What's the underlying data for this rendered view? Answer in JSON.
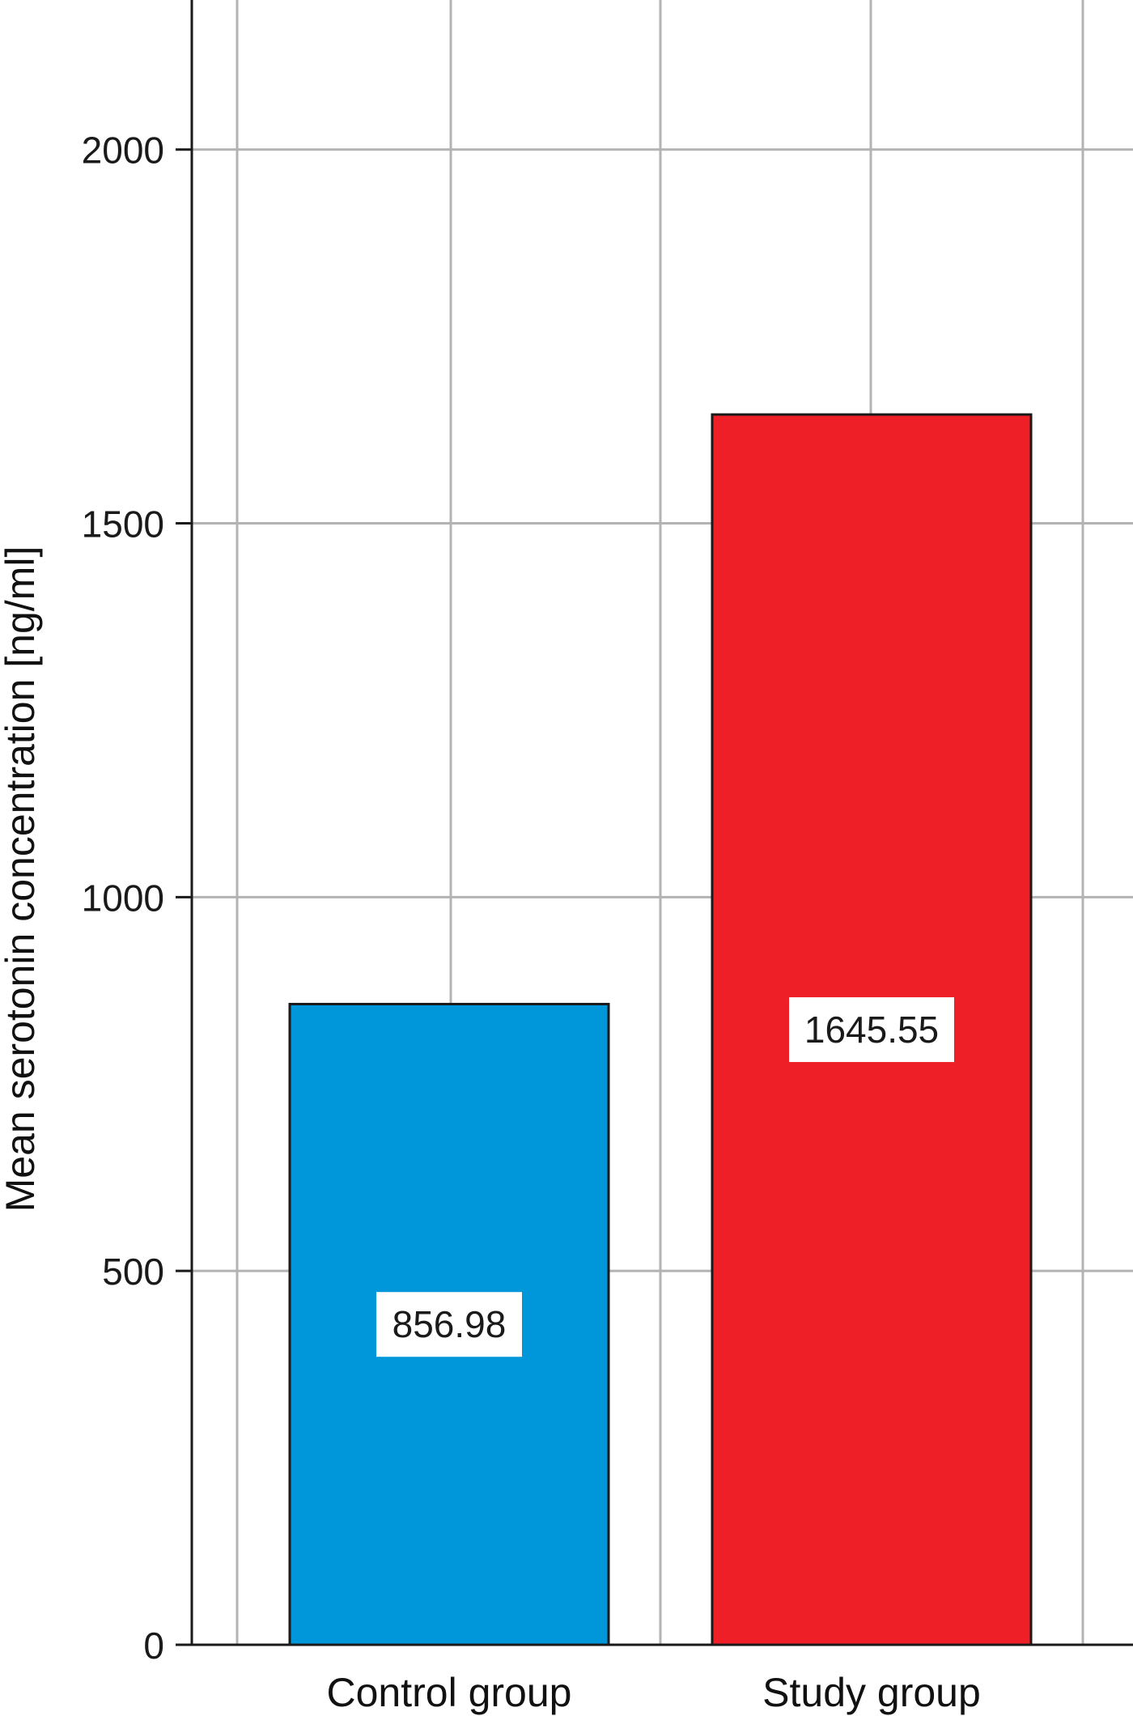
{
  "chart_data": {
    "type": "bar",
    "title": "",
    "xlabel": "",
    "ylabel": "Mean serotonin concentration [ng/ml]",
    "categories": [
      "Control group",
      "Study group"
    ],
    "values": [
      856.98,
      1645.55
    ],
    "value_labels": [
      "856.98",
      "1645.55"
    ],
    "colors": [
      "#0096da",
      "#ee1f26"
    ],
    "ylim": [
      0,
      2200
    ],
    "yticks": [
      0,
      500,
      1000,
      1500,
      2000
    ],
    "ytick_labels": [
      "0",
      "500",
      "1000",
      "1500",
      "2000"
    ],
    "grid": true,
    "legend": "none"
  }
}
